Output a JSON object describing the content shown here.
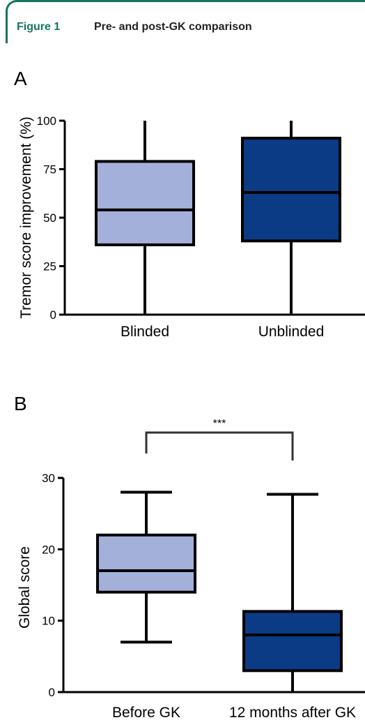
{
  "figure": {
    "label": "Figure 1",
    "caption": "Pre- and post-GK comparison"
  },
  "colors": {
    "accent": "#16755d",
    "light_box": "#a3b0d9",
    "dark_box": "#0b3b84",
    "line": "#000000"
  },
  "chart_data": [
    {
      "panel": "A",
      "type": "box",
      "title": "",
      "xlabel": "",
      "ylabel": "Tremor score improvement (%)",
      "ylim": [
        0,
        100
      ],
      "yticks": [
        0,
        25,
        50,
        75,
        100
      ],
      "categories": [
        "Blinded",
        "Unblinded"
      ],
      "boxes": [
        {
          "category": "Blinded",
          "min": 0,
          "q1": 36,
          "median": 54,
          "q3": 79,
          "max": 100,
          "color": "#a3b0d9"
        },
        {
          "category": "Unblinded",
          "min": 0,
          "q1": 38,
          "median": 63,
          "q3": 91,
          "max": 100,
          "color": "#0b3b84"
        }
      ],
      "grid": false
    },
    {
      "panel": "B",
      "type": "box",
      "title": "",
      "xlabel": "",
      "ylabel": "Global score",
      "ylim": [
        0,
        30
      ],
      "yticks": [
        0,
        10,
        20,
        30
      ],
      "categories": [
        "Before GK",
        "12 months after GK"
      ],
      "boxes": [
        {
          "category": "Before GK",
          "min": 7,
          "q1": 14,
          "median": 17,
          "q3": 22,
          "max": 28,
          "color": "#a3b0d9"
        },
        {
          "category": "12 months after GK",
          "min": 0,
          "q1": 3,
          "median": 8,
          "q3": 11.3,
          "max": 27.7,
          "color": "#0b3b84"
        }
      ],
      "annotation": "***",
      "grid": false
    }
  ]
}
